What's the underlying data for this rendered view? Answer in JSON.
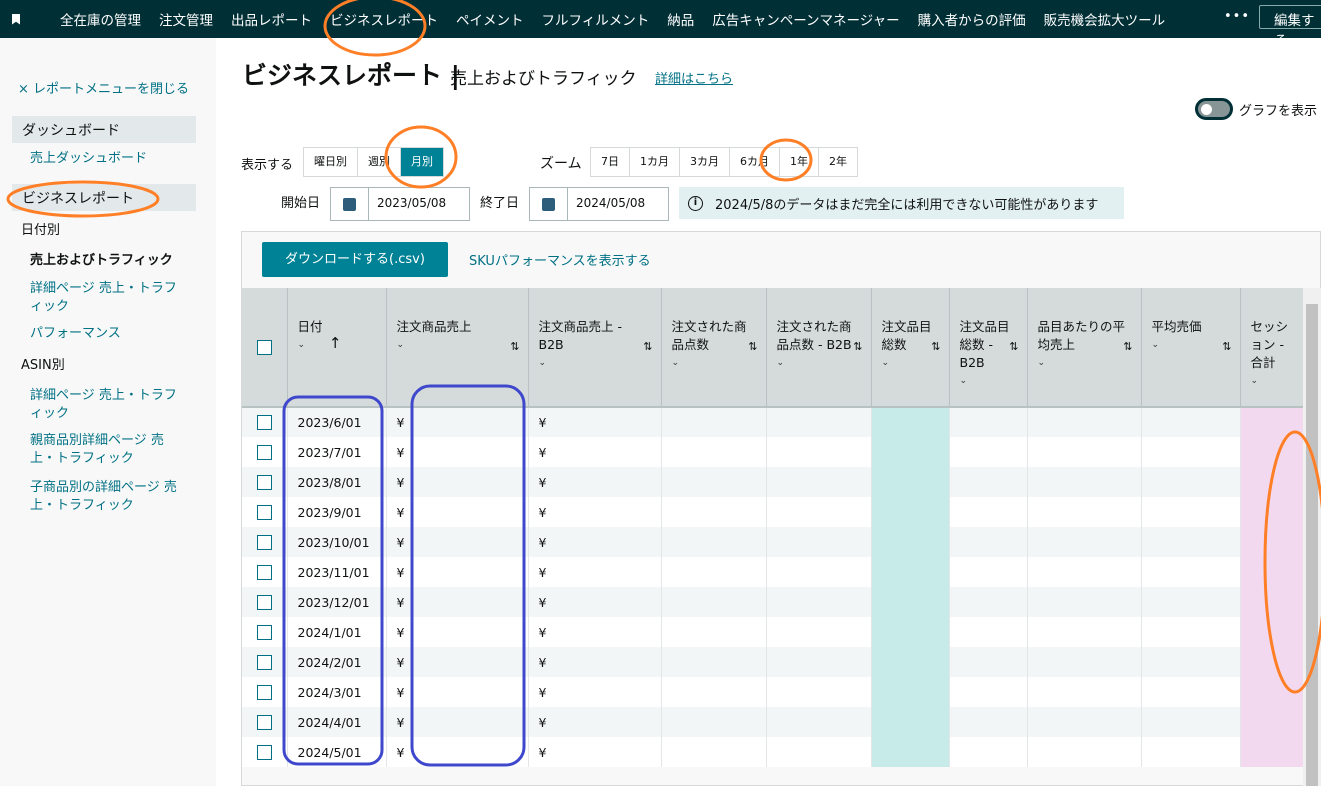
{
  "topnav": {
    "items": [
      "全在庫の管理",
      "注文管理",
      "出品レポート",
      "ビジネスレポート",
      "ペイメント",
      "フルフィルメント",
      "納品",
      "広告キャンペーンマネージャー",
      "購入者からの評価",
      "販売機会拡大ツール"
    ],
    "more": "•••",
    "edit": "編集する"
  },
  "sidebar": {
    "close": "× レポートメニューを閉じる",
    "dashboard": "ダッシュボード",
    "sales_dashboard": "売上ダッシュボード",
    "business_report": "ビジネスレポート",
    "by_date": "日付別",
    "date_items": [
      "売上およびトラフィック",
      "詳細ページ 売上・トラフィック",
      "パフォーマンス"
    ],
    "by_asin": "ASIN別",
    "asin_items": [
      "詳細ページ 売上・トラフィック",
      "親商品別詳細ページ 売上・トラフィック",
      "子商品別の詳細ページ 売上・トラフィック"
    ]
  },
  "header": {
    "title": "ビジネスレポート |",
    "subtitle": "売上およびトラフィック",
    "detail_link": "詳細はこちら",
    "graph_toggle": "グラフを表示",
    "graph_on": false
  },
  "controls": {
    "display_label": "表示する",
    "display_options": [
      "曜日別",
      "週別",
      "月別"
    ],
    "display_selected": "月別",
    "zoom_label": "ズーム",
    "zoom_options": [
      "7日",
      "1カ月",
      "3カ月",
      "6カ月",
      "1年",
      "2年"
    ],
    "start_label": "開始日",
    "start_date": "2023/05/08",
    "end_label": "終了日",
    "end_date": "2024/05/08",
    "info": "2024/5/8のデータはまだ完全には利用できない可能性があります"
  },
  "actions": {
    "download": "ダウンロードする(.csv)",
    "sku_link": "SKUパフォーマンスを表示する"
  },
  "table": {
    "columns": [
      "日付",
      "注文商品売上",
      "注文商品売上 - B2B",
      "注文された商品点数",
      "注文された商品点数 - B2B",
      "注文品目総数",
      "注文品目総数 - B2B",
      "品目あたりの平均売上",
      "平均売価",
      "セッション - 合計"
    ],
    "rows": [
      "2023/6/01",
      "2023/7/01",
      "2023/8/01",
      "2023/9/01",
      "2023/10/01",
      "2023/11/01",
      "2023/12/01",
      "2024/1/01",
      "2024/2/01",
      "2024/3/01",
      "2024/4/01",
      "2024/5/01"
    ],
    "currency": "¥"
  },
  "colors": {
    "nav": "#002f36",
    "accent": "#008296",
    "link": "#007185",
    "annotation_orange": "#ff7f27",
    "annotation_blue": "#3f48cc"
  }
}
